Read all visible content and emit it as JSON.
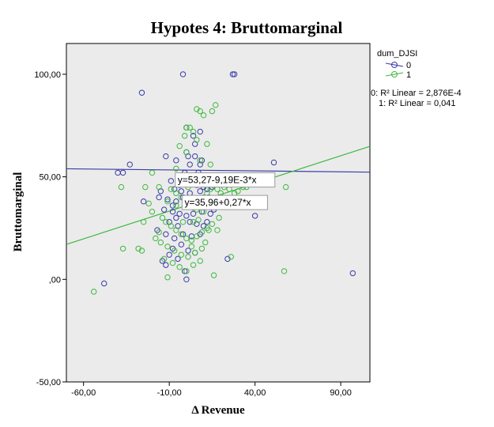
{
  "chart_data": {
    "type": "scatter",
    "title": "Hypotes 4: Bruttomarginal",
    "xlabel": "Δ Revenue",
    "ylabel": "Bruttomarginal",
    "xlim": [
      -70,
      107
    ],
    "ylim": [
      -50,
      115
    ],
    "x_ticks": [
      -60,
      -10,
      40,
      90
    ],
    "x_tick_labels": [
      "-60,00",
      "-10,00",
      "40,00",
      "90,00"
    ],
    "y_ticks": [
      -50,
      0,
      50,
      100
    ],
    "y_tick_labels": [
      "-50,00",
      ",00",
      "50,00",
      "100,00"
    ],
    "grid": false,
    "legend": {
      "title": "dum_DJSI",
      "placement": "top-right",
      "entries": [
        "0",
        "1"
      ],
      "fit_notes": [
        "0: R² Linear = 2,876E-4",
        "1: R² Linear = 0,041"
      ]
    },
    "colors": {
      "series0": "#3b3ba8",
      "series1": "#3fb83f",
      "plot_bg": "#ebebeb",
      "eq_box_border": "#9a9a9a"
    },
    "series": [
      {
        "name": "0",
        "fit": {
          "intercept": 53.27,
          "slope": -0.00919,
          "equation": "y=53,27-9,19E-3*x"
        },
        "points": [
          [
            -2,
            100
          ],
          [
            27,
            100
          ],
          [
            28,
            100
          ],
          [
            -26,
            91
          ],
          [
            -40,
            52
          ],
          [
            -33,
            56
          ],
          [
            -37,
            52
          ],
          [
            -12,
            60
          ],
          [
            -6,
            58
          ],
          [
            0,
            62
          ],
          [
            5,
            60
          ],
          [
            2,
            56
          ],
          [
            8,
            56
          ],
          [
            -1,
            52
          ],
          [
            3,
            50
          ],
          [
            -9,
            48
          ],
          [
            -4,
            48
          ],
          [
            1,
            47
          ],
          [
            6,
            46
          ],
          [
            10,
            45
          ],
          [
            -7,
            44
          ],
          [
            -3,
            43
          ],
          [
            2,
            42
          ],
          [
            8,
            43
          ],
          [
            12,
            44
          ],
          [
            15,
            45
          ],
          [
            -16,
            40
          ],
          [
            -11,
            39
          ],
          [
            -6,
            38
          ],
          [
            -1,
            37
          ],
          [
            3,
            36
          ],
          [
            7,
            37
          ],
          [
            11,
            38
          ],
          [
            18,
            36
          ],
          [
            -13,
            34
          ],
          [
            -8,
            33
          ],
          [
            -4,
            32
          ],
          [
            0,
            31
          ],
          [
            4,
            32
          ],
          [
            9,
            33
          ],
          [
            14,
            32
          ],
          [
            2,
            28
          ],
          [
            6,
            27
          ],
          [
            10,
            26
          ],
          [
            -10,
            28
          ],
          [
            -5,
            26
          ],
          [
            -17,
            24
          ],
          [
            -12,
            22
          ],
          [
            -7,
            20
          ],
          [
            -2,
            22
          ],
          [
            3,
            21
          ],
          [
            8,
            22
          ],
          [
            -3,
            17
          ],
          [
            -8,
            15
          ],
          [
            1,
            14
          ],
          [
            5,
            13
          ],
          [
            -10,
            12
          ],
          [
            -5,
            10
          ],
          [
            -14,
            9
          ],
          [
            -12,
            7
          ],
          [
            0,
            0
          ],
          [
            -1,
            4
          ],
          [
            24,
            10
          ],
          [
            40,
            31
          ],
          [
            51,
            57
          ],
          [
            -25,
            38
          ],
          [
            -15,
            43
          ],
          [
            1,
            60
          ],
          [
            5,
            66
          ],
          [
            8,
            72
          ],
          [
            0,
            74
          ],
          [
            -48,
            -2
          ],
          [
            97,
            3
          ],
          [
            -4,
            46
          ],
          [
            13,
            40
          ],
          [
            16,
            34
          ],
          [
            7,
            52
          ],
          [
            -8,
            36
          ],
          [
            12,
            28
          ],
          [
            4,
            70
          ],
          [
            9,
            58
          ],
          [
            -6,
            30
          ],
          [
            -2,
            40
          ],
          [
            11,
            50
          ]
        ]
      },
      {
        "name": "1",
        "fit": {
          "intercept": 35.96,
          "slope": 0.27,
          "equation": "y=35,96+0,27*x"
        },
        "points": [
          [
            -54,
            -6
          ],
          [
            -38,
            45
          ],
          [
            -37,
            15
          ],
          [
            -28,
            15
          ],
          [
            -26,
            14
          ],
          [
            -25,
            28
          ],
          [
            -22,
            37
          ],
          [
            -20,
            33
          ],
          [
            -24,
            45
          ],
          [
            -20,
            52
          ],
          [
            -16,
            45
          ],
          [
            -14,
            30
          ],
          [
            -11,
            38
          ],
          [
            -9,
            44
          ],
          [
            -6,
            42
          ],
          [
            -3,
            40
          ],
          [
            0,
            38
          ],
          [
            2,
            36
          ],
          [
            4,
            35
          ],
          [
            6,
            34
          ],
          [
            8,
            38
          ],
          [
            10,
            40
          ],
          [
            12,
            42
          ],
          [
            14,
            44
          ],
          [
            16,
            46
          ],
          [
            18,
            44
          ],
          [
            20,
            42
          ],
          [
            22,
            45
          ],
          [
            25,
            44
          ],
          [
            28,
            42
          ],
          [
            30,
            43
          ],
          [
            33,
            45
          ],
          [
            37,
            50
          ],
          [
            58,
            45
          ],
          [
            6,
            83
          ],
          [
            8,
            82
          ],
          [
            10,
            80
          ],
          [
            15,
            82
          ],
          [
            17,
            85
          ],
          [
            0,
            74
          ],
          [
            2,
            74
          ],
          [
            -1,
            70
          ],
          [
            4,
            72
          ],
          [
            -4,
            65
          ],
          [
            0,
            62
          ],
          [
            6,
            68
          ],
          [
            12,
            66
          ],
          [
            8,
            58
          ],
          [
            -6,
            54
          ],
          [
            -3,
            50
          ],
          [
            2,
            50
          ],
          [
            -12,
            28
          ],
          [
            -9,
            26
          ],
          [
            -6,
            24
          ],
          [
            -3,
            22
          ],
          [
            0,
            20
          ],
          [
            3,
            19
          ],
          [
            6,
            21
          ],
          [
            9,
            23
          ],
          [
            12,
            25
          ],
          [
            15,
            27
          ],
          [
            18,
            24
          ],
          [
            -15,
            18
          ],
          [
            -11,
            16
          ],
          [
            -7,
            14
          ],
          [
            -3,
            12
          ],
          [
            1,
            11
          ],
          [
            5,
            13
          ],
          [
            9,
            15
          ],
          [
            -13,
            10
          ],
          [
            -8,
            8
          ],
          [
            -4,
            6
          ],
          [
            0,
            4
          ],
          [
            4,
            7
          ],
          [
            8,
            9
          ],
          [
            -11,
            1
          ],
          [
            16,
            2
          ],
          [
            26,
            11
          ],
          [
            35,
            45
          ],
          [
            57,
            4
          ],
          [
            -18,
            20
          ],
          [
            14,
            56
          ],
          [
            -2,
            28
          ],
          [
            4,
            28
          ],
          [
            10,
            33
          ],
          [
            1,
            45
          ],
          [
            13,
            24
          ],
          [
            -6,
            36
          ],
          [
            7,
            29
          ],
          [
            19,
            30
          ],
          [
            -16,
            23
          ],
          [
            3,
            16
          ],
          [
            11,
            18
          ]
        ]
      }
    ]
  }
}
